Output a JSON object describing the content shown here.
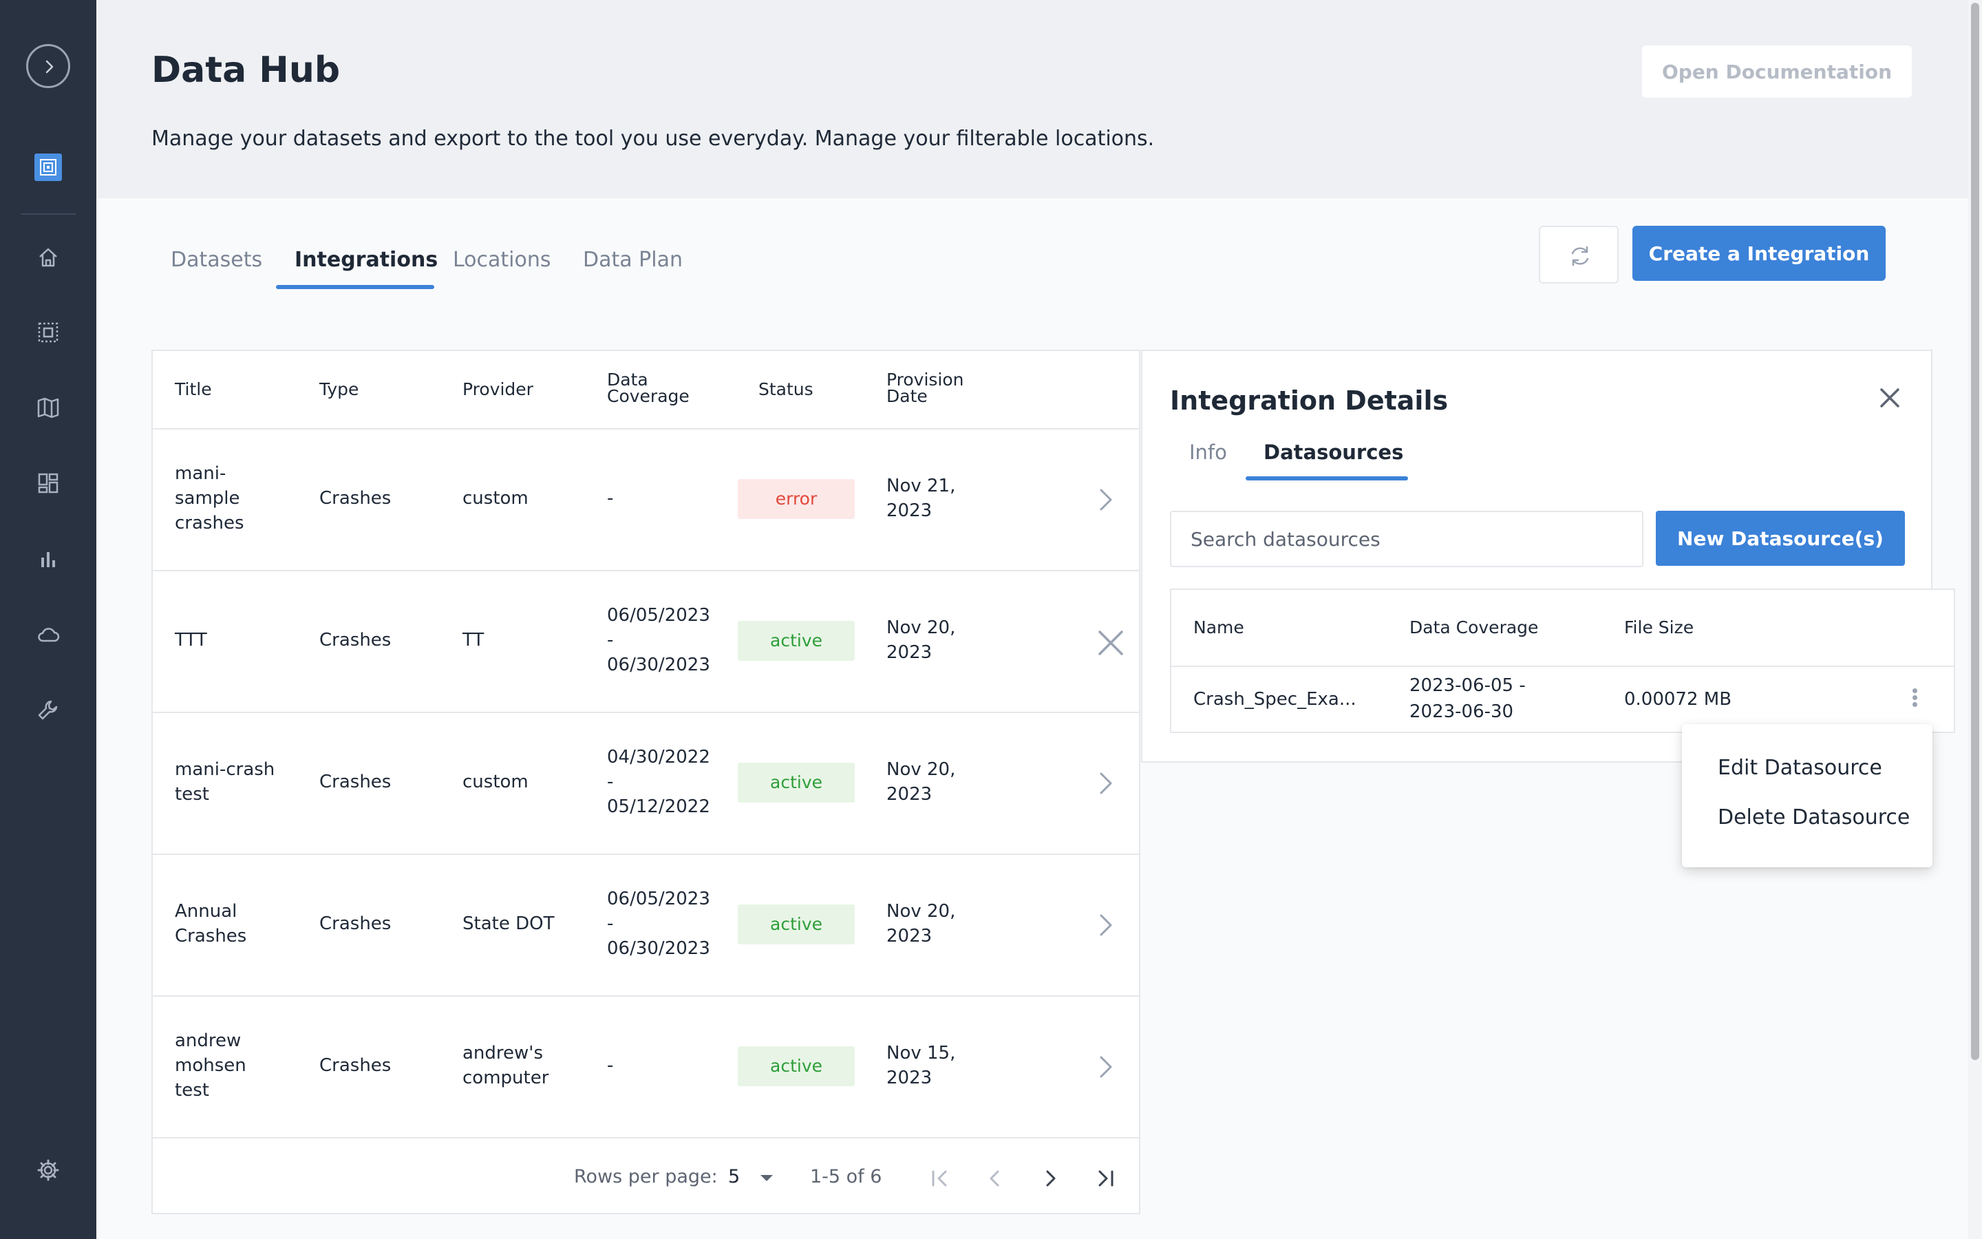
{
  "app": {
    "title": "Data Hub",
    "subtitle": "Manage your datasets and export to the tool you use everyday. Manage your filterable locations.",
    "open_docs_label": "Open Documentation"
  },
  "sidebar": {
    "items": [
      {
        "icon": "home-icon"
      },
      {
        "icon": "selection-icon"
      },
      {
        "icon": "map-icon"
      },
      {
        "icon": "dashboard-icon"
      },
      {
        "icon": "bar-chart-icon"
      },
      {
        "icon": "cloud-icon"
      },
      {
        "icon": "wrench-icon"
      },
      {
        "icon": "gear-icon"
      }
    ]
  },
  "tabs": [
    {
      "label": "Datasets"
    },
    {
      "label": "Integrations"
    },
    {
      "label": "Locations"
    },
    {
      "label": "Data Plan"
    }
  ],
  "active_tab": "Integrations",
  "actions": {
    "refresh_icon": "refresh-icon",
    "create_label": "Create a Integration"
  },
  "table": {
    "columns": {
      "title": "Title",
      "type": "Type",
      "provider": "Provider",
      "coverage": [
        "Data",
        "Coverage"
      ],
      "status": "Status",
      "provision": [
        "Provision",
        "Date"
      ]
    },
    "rows": [
      {
        "title": [
          "mani-",
          "sample",
          "crashes"
        ],
        "type": "Crashes",
        "provider": [
          "custom"
        ],
        "coverage": [
          "-"
        ],
        "status": "error",
        "date": [
          "Nov 21,",
          "2023"
        ],
        "action": "chevron-right-icon"
      },
      {
        "title": [
          "TTT"
        ],
        "type": "Crashes",
        "provider": [
          "TT"
        ],
        "coverage": [
          "06/05/2023",
          "-",
          "06/30/2023"
        ],
        "status": "active",
        "date": [
          "Nov 20,",
          "2023"
        ],
        "action": "close-icon"
      },
      {
        "title": [
          "mani-crash",
          "test"
        ],
        "type": "Crashes",
        "provider": [
          "custom"
        ],
        "coverage": [
          "04/30/2022",
          "-",
          "05/12/2022"
        ],
        "status": "active",
        "date": [
          "Nov 20,",
          "2023"
        ],
        "action": "chevron-right-icon"
      },
      {
        "title": [
          "Annual",
          "Crashes"
        ],
        "type": "Crashes",
        "provider": [
          "State DOT"
        ],
        "coverage": [
          "06/05/2023",
          "-",
          "06/30/2023"
        ],
        "status": "active",
        "date": [
          "Nov 20,",
          "2023"
        ],
        "action": "chevron-right-icon"
      },
      {
        "title": [
          "andrew",
          "mohsen",
          "test"
        ],
        "type": "Crashes",
        "provider": [
          "andrew's",
          "computer"
        ],
        "coverage": [
          "-"
        ],
        "status": "active",
        "date": [
          "Nov 15,",
          "2023"
        ],
        "action": "chevron-right-icon"
      }
    ],
    "pagination": {
      "rows_per_page_label": "Rows per page:",
      "rows_per_page_value": "5",
      "range": "1-5 of 6"
    }
  },
  "details": {
    "title": "Integration Details",
    "tabs": [
      {
        "label": "Info"
      },
      {
        "label": "Datasources"
      }
    ],
    "active_tab": "Datasources",
    "search_placeholder": "Search datasources",
    "new_label": "New Datasource(s)",
    "columns": {
      "name": "Name",
      "coverage": "Data Coverage",
      "size": "File Size"
    },
    "rows": [
      {
        "name": "Crash_Spec_Exa...",
        "coverage": [
          "2023-06-05 -",
          "2023-06-30"
        ],
        "size": "0.00072 MB"
      }
    ],
    "menu": [
      {
        "label": "Edit Datasource"
      },
      {
        "label": "Delete Datasource"
      }
    ]
  },
  "colors": {
    "sidebar": "#283241",
    "accent": "#3b82d9",
    "error_bg": "#fde8e8",
    "error_text": "#e0483a",
    "active_bg": "#e8f5e6",
    "active_text": "#2e9e3a"
  }
}
